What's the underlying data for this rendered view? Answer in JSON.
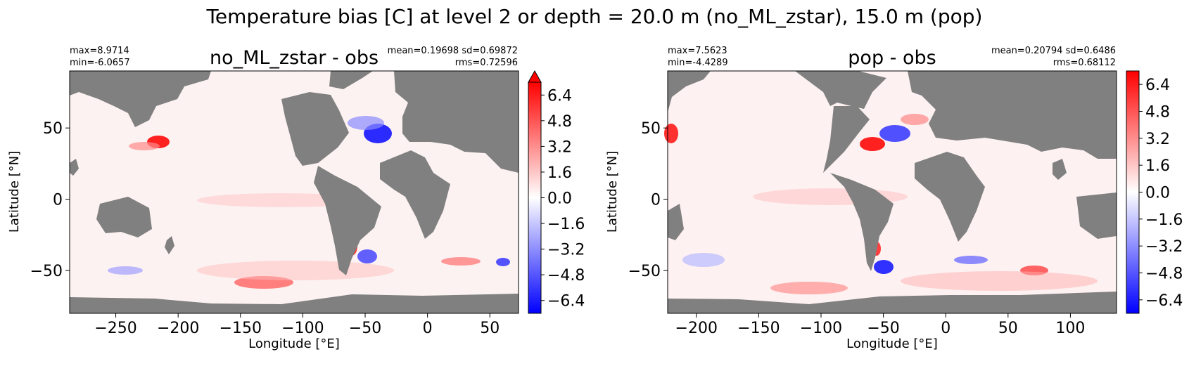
{
  "figure": {
    "suptitle": "Temperature bias [C] at level 2 or depth = 20.0 m (no_ML_zstar), 15.0 m (pop)"
  },
  "colors": {
    "land": "#808080",
    "cmap_low": "#0000ff",
    "cmap_mid": "#ffffff",
    "cmap_high": "#ff0000"
  },
  "chart_data": [
    {
      "type": "heatmap",
      "title": "no_ML_zstar - obs",
      "stats_left": [
        "max=8.9714",
        "min=-6.0657"
      ],
      "stats_right": [
        "mean=0.19698 sd=0.69872",
        "rms=0.72596"
      ],
      "max": 8.9714,
      "min": -6.0657,
      "mean": 0.19698,
      "sd": 0.69872,
      "rms": 0.72596,
      "xlabel": "Longitude [°E]",
      "ylabel": "Latitude [°N]",
      "xlim": [
        -287,
        73
      ],
      "ylim": [
        -80,
        90
      ],
      "xticks": [
        -250,
        -200,
        -150,
        -100,
        -50,
        0,
        50
      ],
      "xtick_labels": [
        "−250",
        "−200",
        "−150",
        "−100",
        "−50",
        "0",
        "50"
      ],
      "yticks": [
        -50,
        0,
        50
      ],
      "ytick_labels": [
        "−50",
        "0",
        "50"
      ],
      "colorbar": {
        "vmin": -7.2,
        "vmax": 7.2,
        "extend_max": true,
        "ticks": [
          6.4,
          4.8,
          3.2,
          1.6,
          0.0,
          -1.6,
          -3.2,
          -4.8,
          -6.4
        ],
        "tick_labels": [
          "6.4",
          "4.8",
          "3.2",
          "1.6",
          "0.0",
          "−1.6",
          "−3.2",
          "−4.8",
          "−6.4"
        ]
      },
      "grid": false
    },
    {
      "type": "heatmap",
      "title": "pop - obs",
      "stats_left": [
        "max=7.5623",
        "min=-4.4289"
      ],
      "stats_right": [
        "mean=0.20794 sd=0.6486",
        "rms=0.68112"
      ],
      "max": 7.5623,
      "min": -4.4289,
      "mean": 0.20794,
      "sd": 0.6486,
      "rms": 0.68112,
      "xlabel": "Longitude [°E]",
      "ylabel": "Latitude [°N]",
      "xlim": [
        -223,
        137
      ],
      "ylim": [
        -80,
        90
      ],
      "xticks": [
        -200,
        -150,
        -100,
        -50,
        0,
        50,
        100
      ],
      "xtick_labels": [
        "−200",
        "−150",
        "−100",
        "−50",
        "0",
        "50",
        "100"
      ],
      "yticks": [
        -50,
        0,
        50
      ],
      "ytick_labels": [
        "−50",
        "0",
        "50"
      ],
      "colorbar": {
        "vmin": -7.2,
        "vmax": 7.2,
        "extend_max": false,
        "ticks": [
          6.4,
          4.8,
          3.2,
          1.6,
          0.0,
          -1.6,
          -3.2,
          -4.8,
          -6.4
        ],
        "tick_labels": [
          "6.4",
          "4.8",
          "3.2",
          "1.6",
          "0.0",
          "−1.6",
          "−3.2",
          "−4.8",
          "−6.4"
        ]
      },
      "grid": false
    }
  ]
}
